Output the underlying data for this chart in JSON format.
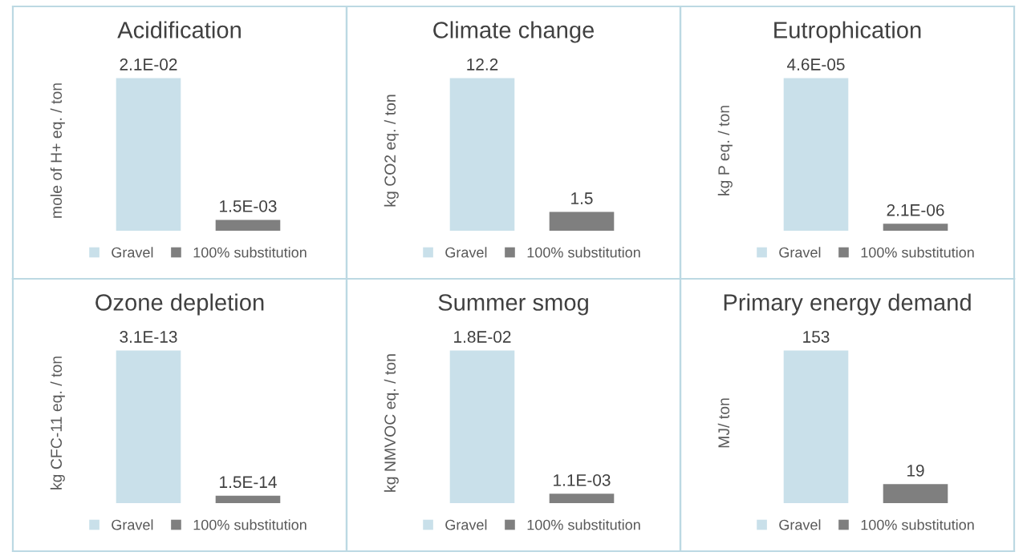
{
  "chart_data": [
    {
      "type": "bar",
      "title": "Acidification",
      "ylabel": "mole of H+ eq. / ton",
      "categories": [
        null
      ],
      "legend": "bottom",
      "series": [
        {
          "name": "Gravel",
          "color": "#c9e0ea",
          "values": [
            0.021
          ],
          "value_labels": [
            "2.1E-02"
          ]
        },
        {
          "name": "100% substitution",
          "color": "#7f7f7f",
          "values": [
            0.0015
          ],
          "value_labels": [
            "1.5E-03"
          ]
        }
      ]
    },
    {
      "type": "bar",
      "title": "Climate change",
      "ylabel": "kg CO2 eq. / ton",
      "categories": [
        null
      ],
      "legend": "bottom",
      "series": [
        {
          "name": "Gravel",
          "color": "#c9e0ea",
          "values": [
            12.2
          ],
          "value_labels": [
            "12.2"
          ]
        },
        {
          "name": "100% substitution",
          "color": "#7f7f7f",
          "values": [
            1.5
          ],
          "value_labels": [
            "1.5"
          ]
        }
      ]
    },
    {
      "type": "bar",
      "title": "Eutrophication",
      "ylabel": "kg P eq. / ton",
      "categories": [
        null
      ],
      "legend": "bottom",
      "series": [
        {
          "name": "Gravel",
          "color": "#c9e0ea",
          "values": [
            4.6e-05
          ],
          "value_labels": [
            "4.6E-05"
          ]
        },
        {
          "name": "100% substitution",
          "color": "#7f7f7f",
          "values": [
            2.1e-06
          ],
          "value_labels": [
            "2.1E-06"
          ]
        }
      ]
    },
    {
      "type": "bar",
      "title": "Ozone depletion",
      "ylabel": "kg CFC-11 eq. / ton",
      "categories": [
        null
      ],
      "legend": "bottom",
      "series": [
        {
          "name": "Gravel",
          "color": "#c9e0ea",
          "values": [
            3.1e-13
          ],
          "value_labels": [
            "3.1E-13"
          ]
        },
        {
          "name": "100% substitution",
          "color": "#7f7f7f",
          "values": [
            1.5e-14
          ],
          "value_labels": [
            "1.5E-14"
          ]
        }
      ]
    },
    {
      "type": "bar",
      "title": "Summer smog",
      "ylabel": "kg NMVOC eq. / ton",
      "categories": [
        null
      ],
      "legend": "bottom",
      "series": [
        {
          "name": "Gravel",
          "color": "#c9e0ea",
          "values": [
            0.018
          ],
          "value_labels": [
            "1.8E-02"
          ]
        },
        {
          "name": "100% substitution",
          "color": "#7f7f7f",
          "values": [
            0.0011
          ],
          "value_labels": [
            "1.1E-03"
          ]
        }
      ]
    },
    {
      "type": "bar",
      "title": "Primary energy demand",
      "ylabel": "MJ/ ton",
      "categories": [
        null
      ],
      "legend": "bottom",
      "series": [
        {
          "name": "Gravel",
          "color": "#c9e0ea",
          "values": [
            153
          ],
          "value_labels": [
            "153"
          ]
        },
        {
          "name": "100% substitution",
          "color": "#7f7f7f",
          "values": [
            19
          ],
          "value_labels": [
            "19"
          ]
        }
      ]
    }
  ]
}
